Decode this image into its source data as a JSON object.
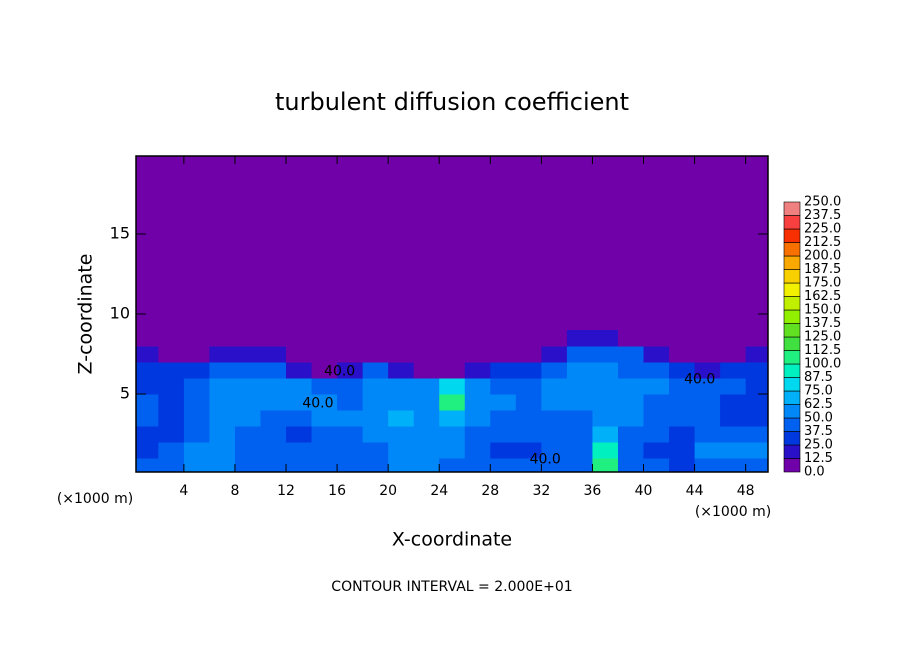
{
  "chart_data": {
    "type": "heatmap",
    "title": "turbulent diffusion coefficient",
    "xlabel": "X-coordinate",
    "ylabel": "Z-coordinate",
    "x_unit_labels": [
      "(×1000 m)",
      "(×1000 m)"
    ],
    "footnote": "CONTOUR INTERVAL = 2.000E+01",
    "xlim": [
      0.25,
      49.75
    ],
    "ylim": [
      0.125,
      19.875
    ],
    "xticks": [
      4,
      8,
      12,
      16,
      20,
      24,
      28,
      32,
      36,
      40,
      44,
      48
    ],
    "yticks": [
      5,
      10,
      15
    ],
    "x": [
      1,
      3,
      5,
      7,
      9,
      11,
      13,
      15,
      17,
      19,
      21,
      23,
      25,
      27,
      29,
      31,
      33,
      35,
      37,
      39,
      41,
      43,
      45,
      47,
      49
    ],
    "y": [
      0.5,
      1.5,
      2.5,
      3.5,
      4.5,
      5.5,
      6.5,
      7.5,
      8.5
    ],
    "z": [
      [
        40,
        45,
        55,
        60,
        45,
        45,
        40,
        40,
        45,
        40,
        60,
        55,
        45,
        40,
        40,
        40,
        45,
        40,
        100,
        45,
        40,
        30,
        40,
        45,
        45
      ],
      [
        35,
        40,
        50,
        55,
        40,
        40,
        40,
        40,
        45,
        45,
        60,
        55,
        50,
        40,
        35,
        35,
        40,
        40,
        90,
        40,
        35,
        30,
        55,
        55,
        50
      ],
      [
        30,
        35,
        45,
        55,
        45,
        40,
        35,
        40,
        45,
        50,
        60,
        50,
        55,
        45,
        40,
        40,
        40,
        40,
        70,
        45,
        40,
        35,
        45,
        40,
        40
      ],
      [
        40,
        35,
        40,
        60,
        50,
        45,
        45,
        50,
        50,
        55,
        65,
        55,
        65,
        50,
        45,
        40,
        45,
        45,
        60,
        50,
        40,
        40,
        40,
        35,
        35
      ],
      [
        40,
        30,
        40,
        55,
        60,
        55,
        50,
        50,
        45,
        55,
        60,
        55,
        110,
        55,
        50,
        45,
        50,
        50,
        55,
        50,
        45,
        40,
        40,
        35,
        30
      ],
      [
        35,
        35,
        45,
        50,
        55,
        55,
        50,
        45,
        45,
        50,
        55,
        60,
        75,
        55,
        45,
        45,
        50,
        55,
        50,
        50,
        55,
        45,
        40,
        40,
        35
      ],
      [
        30,
        35,
        35,
        40,
        45,
        40,
        20,
        5,
        20,
        40,
        20,
        5,
        5,
        20,
        30,
        35,
        40,
        50,
        50,
        45,
        40,
        35,
        20,
        35,
        30
      ],
      [
        20,
        5,
        5,
        20,
        20,
        20,
        5,
        5,
        5,
        5,
        5,
        5,
        5,
        5,
        5,
        5,
        20,
        40,
        45,
        40,
        20,
        5,
        5,
        5,
        20
      ],
      [
        5,
        5,
        5,
        5,
        5,
        5,
        5,
        5,
        5,
        5,
        5,
        5,
        5,
        5,
        5,
        5,
        5,
        20,
        20,
        5,
        5,
        5,
        5,
        5,
        5
      ]
    ],
    "annotations": [
      {
        "text": "40.0",
        "x": 16.2,
        "y": 6.4
      },
      {
        "text": "40.0",
        "x": 14.5,
        "y": 4.4
      },
      {
        "text": "40.0",
        "x": 32.3,
        "y": 0.9
      },
      {
        "text": "40.0",
        "x": 44.4,
        "y": 5.9
      }
    ],
    "colorbar": {
      "ticks": [
        {
          "value": 0,
          "label": "0.0"
        },
        12.5,
        {
          "value": 25,
          "label": "25.0"
        },
        37.5,
        {
          "value": 50,
          "label": "50.0"
        },
        62.5,
        {
          "value": 75,
          "label": "75.0"
        },
        87.5,
        {
          "value": 100,
          "label": "100.0"
        },
        112.5,
        {
          "value": 125,
          "label": "125.0"
        },
        137.5,
        {
          "value": 150,
          "label": "150.0"
        },
        162.5,
        {
          "value": 175,
          "label": "175.0"
        },
        187.5,
        {
          "value": 200,
          "label": "200.0"
        },
        212.5,
        {
          "value": 225,
          "label": "225.0"
        },
        237.5,
        {
          "value": 250,
          "label": "250.0"
        }
      ],
      "colors": [
        "#7000a8",
        "#2a10c8",
        "#0038e0",
        "#0060f0",
        "#0088f8",
        "#00b0f8",
        "#00d8f0",
        "#00f0c0",
        "#20f080",
        "#40e040",
        "#60e020",
        "#90f000",
        "#c0f000",
        "#f0f000",
        "#f8d000",
        "#f8a800",
        "#f87000",
        "#f83000",
        "#f84040",
        "#f08080"
      ]
    }
  }
}
